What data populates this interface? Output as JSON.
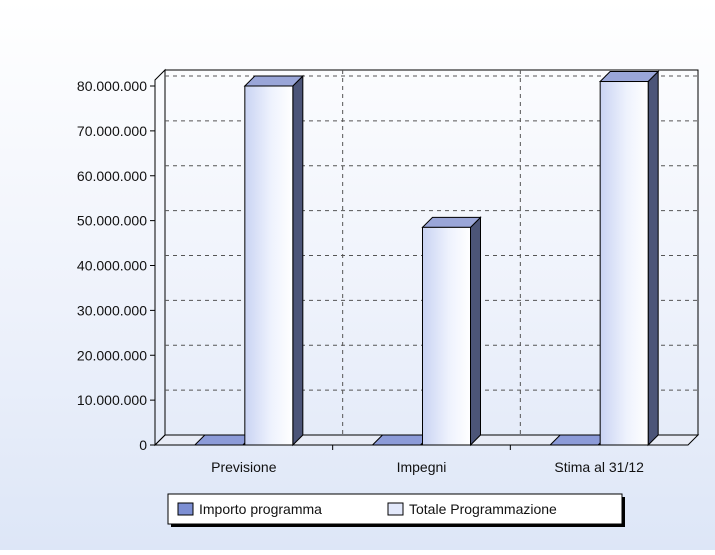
{
  "chart_data": {
    "type": "bar",
    "title": "",
    "xlabel": "",
    "ylabel": "",
    "categories": [
      "Previsione",
      "Impegni",
      "Stima al 31/12"
    ],
    "series": [
      {
        "name": "Importo programma",
        "values": [
          0,
          0,
          0
        ],
        "color": "#7d8fd3"
      },
      {
        "name": "Totale Programmazione",
        "values": [
          80000000,
          48500000,
          81000000
        ],
        "color": "#e3e9fb"
      }
    ],
    "ylim": [
      0,
      80000000
    ],
    "yticks": [
      "0",
      "10.000.000",
      "20.000.000",
      "30.000.000",
      "40.000.000",
      "50.000.000",
      "60.000.000",
      "70.000.000",
      "80.000.000"
    ],
    "ytick_values": [
      0,
      10000000,
      20000000,
      30000000,
      40000000,
      50000000,
      60000000,
      70000000,
      80000000
    ],
    "grid": true,
    "style": "3d",
    "legend_position": "bottom"
  }
}
